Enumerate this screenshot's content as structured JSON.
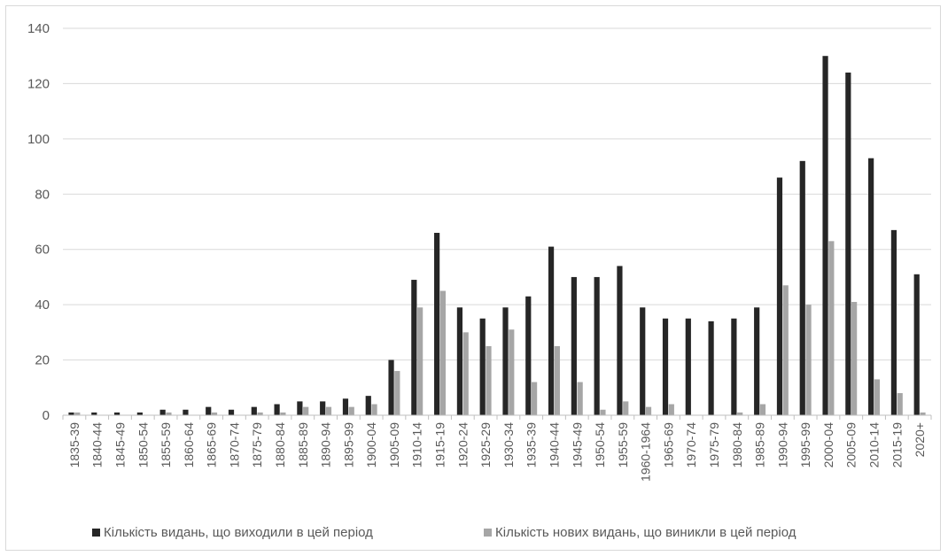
{
  "chart_data": {
    "type": "bar",
    "title": "",
    "xlabel": "",
    "ylabel": "",
    "ylim": [
      0,
      140
    ],
    "yticks": [
      0,
      20,
      40,
      60,
      80,
      100,
      120,
      140
    ],
    "grid": true,
    "legend_position": "bottom",
    "categories": [
      "1835-39",
      "1840-44",
      "1845-49",
      "1850-54",
      "1855-59",
      "1860-64",
      "1865-69",
      "1870-74",
      "1875-79",
      "1880-84",
      "1885-89",
      "1890-94",
      "1895-99",
      "1900-04",
      "1905-09",
      "1910-14",
      "1915-19",
      "1920-24",
      "1925-29",
      "1930-34",
      "1935-39",
      "1940-44",
      "1945-49",
      "1950-54",
      "1955-59",
      "1960-1964",
      "1965-69",
      "1970-74",
      "1975-79",
      "1980-84",
      "1985-89",
      "1990-94",
      "1995-99",
      "2000-04",
      "2005-09",
      "2010-14",
      "2015-19",
      "2020+"
    ],
    "series": [
      {
        "name": "Кількість видань, що виходили в цей період",
        "color": "#262626",
        "values": [
          1,
          1,
          1,
          1,
          2,
          2,
          3,
          2,
          3,
          4,
          5,
          5,
          6,
          7,
          20,
          49,
          66,
          39,
          35,
          39,
          43,
          61,
          50,
          50,
          54,
          39,
          35,
          35,
          34,
          35,
          39,
          86,
          92,
          130,
          124,
          93,
          67,
          51
        ]
      },
      {
        "name": "Кількість нових видань, що виникли в цей період",
        "color": "#a6a6a6",
        "values": [
          1,
          0,
          0,
          0,
          1,
          0,
          1,
          0,
          1,
          1,
          3,
          3,
          3,
          4,
          16,
          39,
          45,
          30,
          25,
          31,
          12,
          25,
          12,
          2,
          5,
          3,
          4,
          0,
          0,
          1,
          4,
          47,
          40,
          63,
          41,
          13,
          8,
          1
        ]
      }
    ]
  }
}
